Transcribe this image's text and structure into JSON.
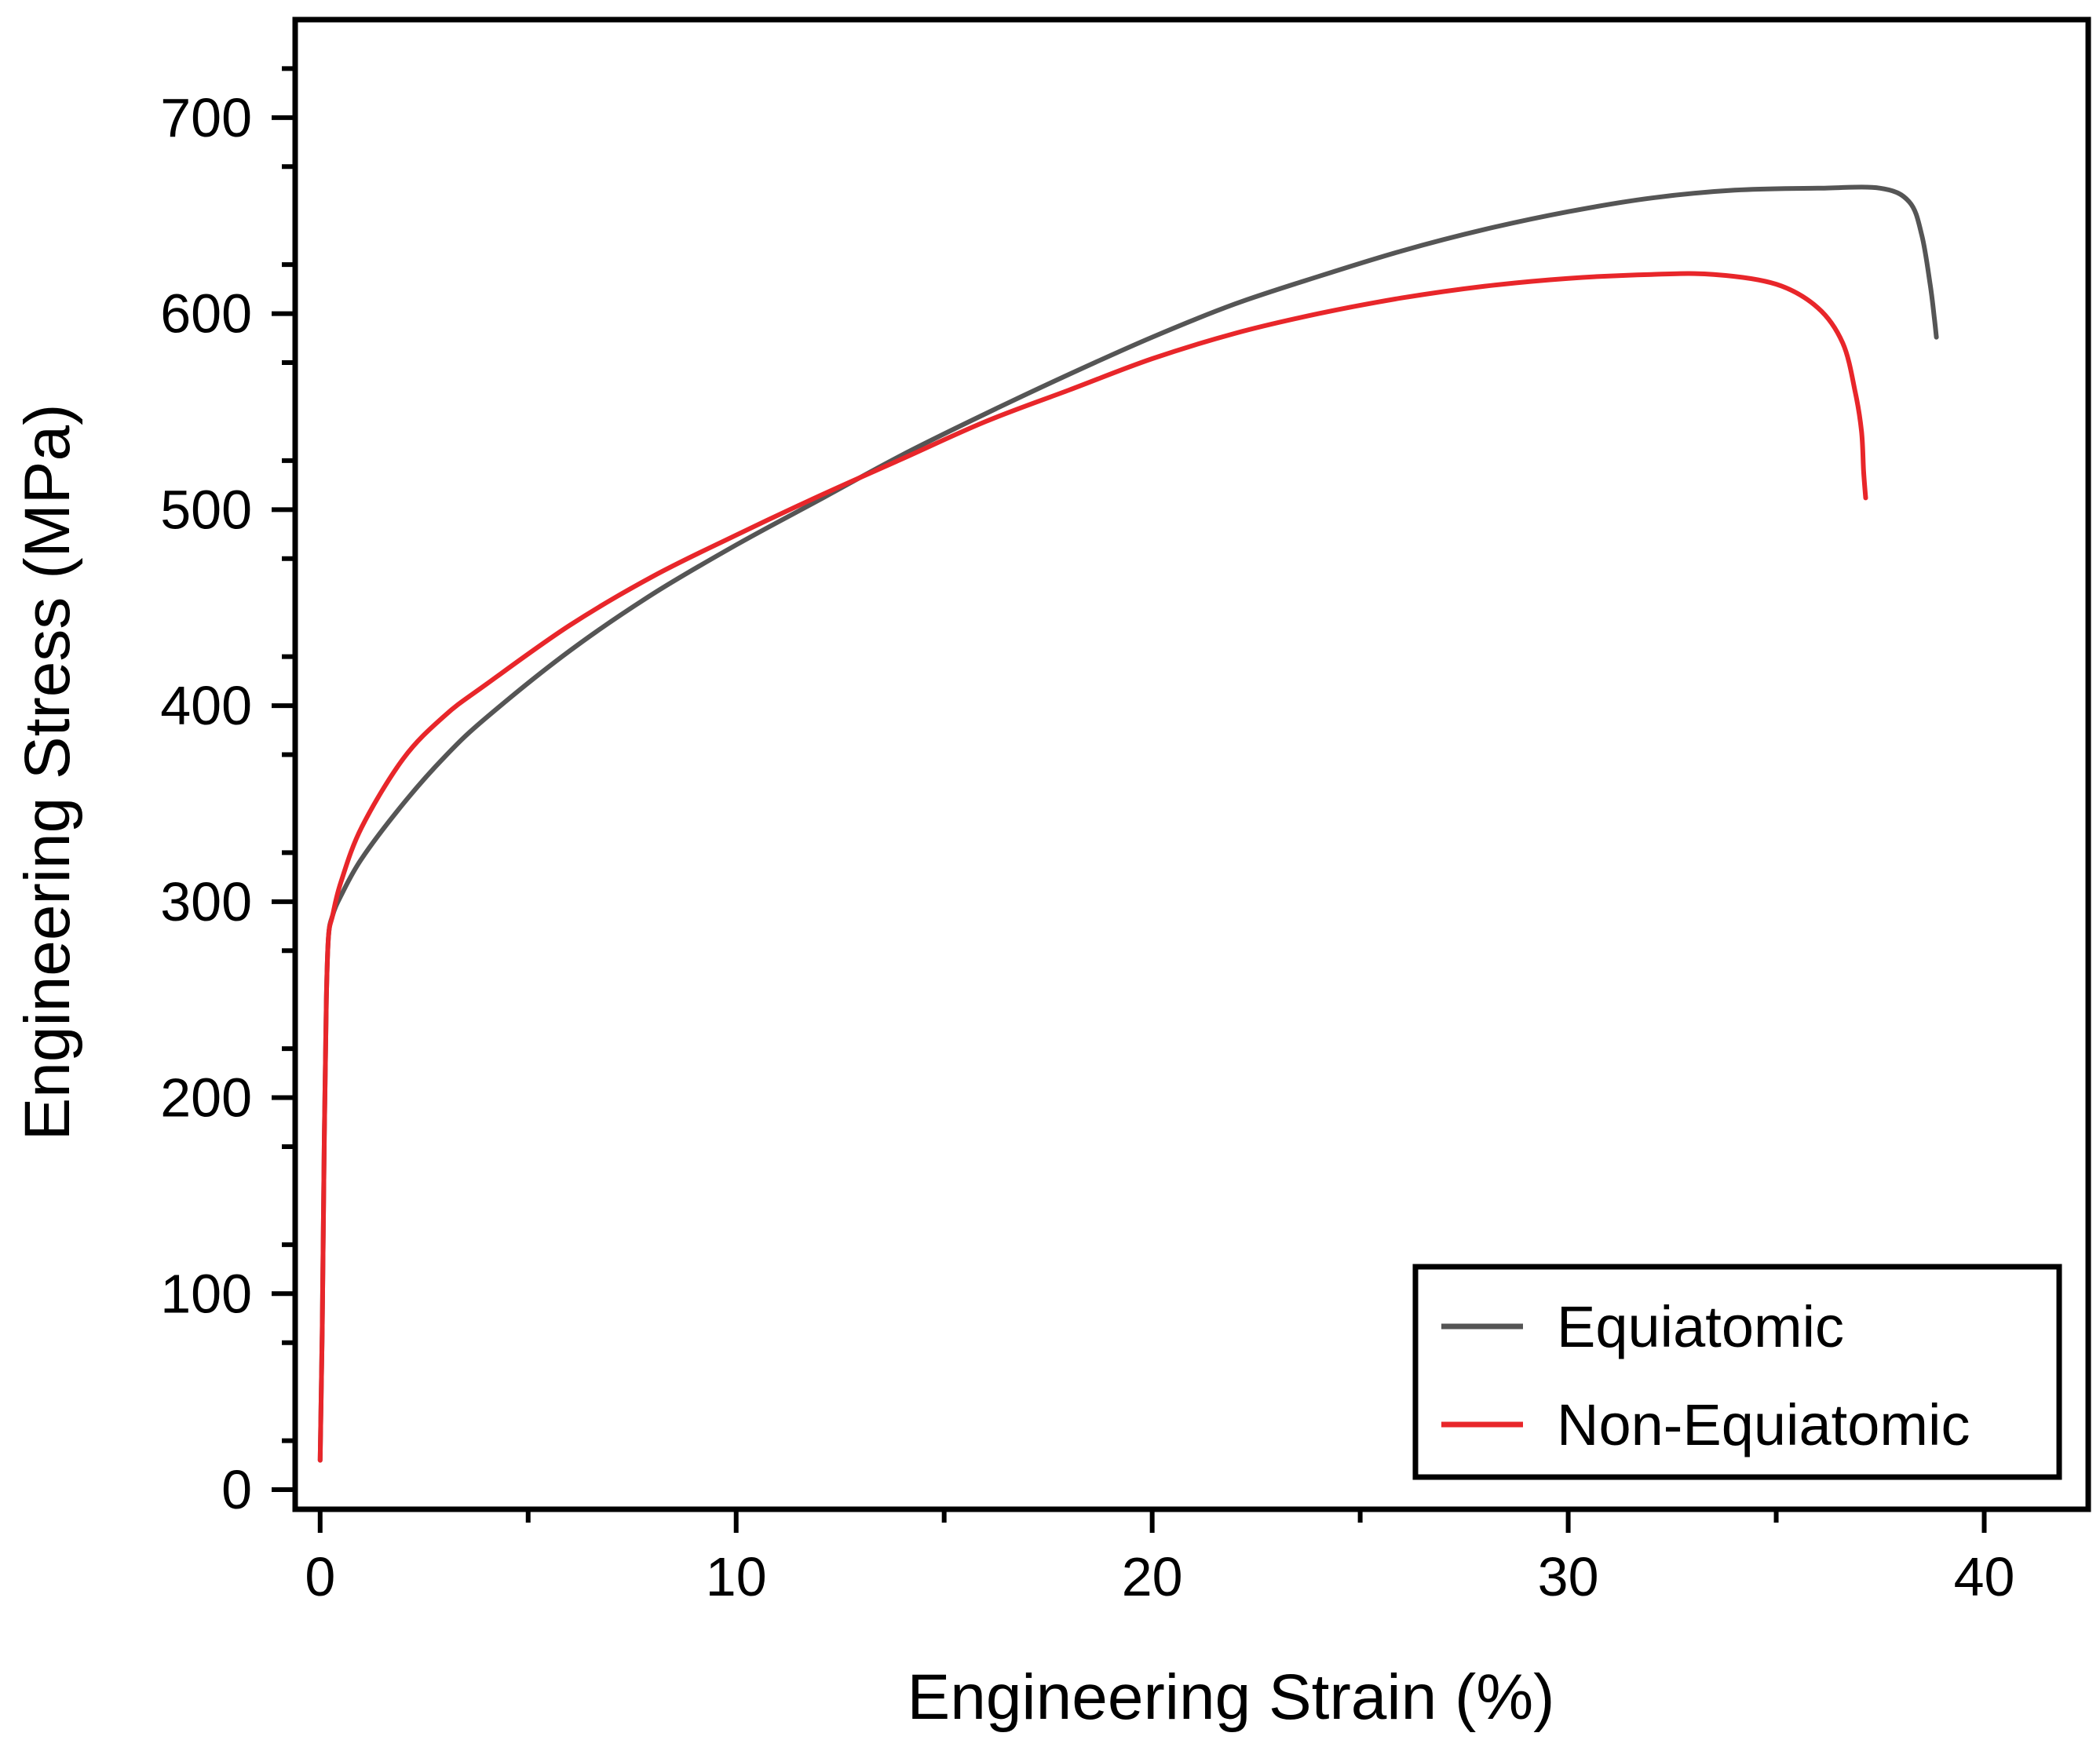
{
  "chart_data": {
    "type": "line",
    "title": "",
    "xlabel": "Engineering Strain (%)",
    "ylabel": "Engineering Stress (MPa)",
    "xlim": [
      -0.6,
      42.5
    ],
    "ylim": [
      -10,
      750
    ],
    "xticks": [
      0,
      10,
      20,
      30,
      40
    ],
    "xtick_labels": [
      "0",
      "10",
      "20",
      "30",
      "40"
    ],
    "yticks": [
      0,
      100,
      200,
      300,
      400,
      500,
      600,
      700
    ],
    "ytick_labels": [
      "0",
      "100",
      "200",
      "300",
      "400",
      "500",
      "600",
      "700"
    ],
    "grid": false,
    "legend_position": "bottom-right",
    "series": [
      {
        "name": "Equiatomic",
        "color": "#555555",
        "x": [
          0.0,
          0.05,
          0.1,
          0.15,
          0.2,
          0.3,
          0.5,
          1.0,
          2.0,
          3.0,
          4.0,
          6.0,
          8.0,
          10.0,
          12.0,
          14.0,
          16.0,
          18.0,
          20.0,
          22.0,
          24.0,
          26.0,
          28.0,
          30.0,
          32.0,
          34.0,
          36.0,
          37.5,
          38.2,
          38.5,
          38.7,
          38.8,
          38.85
        ],
        "y": [
          15,
          80,
          180,
          250,
          282,
          293,
          303,
          322,
          350,
          374,
          394,
          428,
          457,
          482,
          505,
          528,
          549,
          569,
          588,
          605,
          619,
          632,
          643,
          652,
          659,
          663,
          664,
          664,
          657,
          640,
          615,
          598,
          588
        ]
      },
      {
        "name": "Non-Equiatomic",
        "color": "#e8262a",
        "x": [
          0.0,
          0.05,
          0.1,
          0.15,
          0.2,
          0.3,
          0.5,
          1.0,
          2.0,
          3.0,
          4.0,
          6.0,
          8.0,
          10.0,
          12.0,
          14.0,
          16.0,
          18.0,
          20.0,
          22.0,
          24.0,
          26.0,
          28.0,
          30.0,
          32.0,
          33.5,
          35.0,
          36.0,
          36.6,
          36.9,
          37.05,
          37.1,
          37.15
        ],
        "y": [
          15,
          80,
          180,
          250,
          282,
          293,
          310,
          338,
          373,
          395,
          411,
          441,
          466,
          487,
          507,
          526,
          545,
          561,
          577,
          590,
          600,
          608,
          614,
          618,
          620,
          620,
          615,
          603,
          585,
          560,
          540,
          520,
          506
        ]
      }
    ]
  }
}
